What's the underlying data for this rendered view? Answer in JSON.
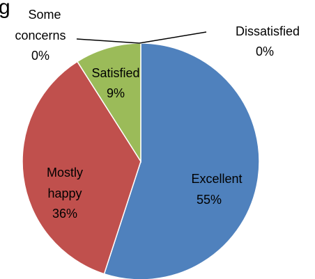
{
  "title_fragment": "g",
  "chart_data": {
    "type": "pie",
    "slices": [
      {
        "label": "Excellent",
        "value_label": "55%",
        "value": 55,
        "color": "#4F81BD"
      },
      {
        "label": "Mostly happy",
        "label_lines": [
          "Mostly",
          "happy"
        ],
        "value_label": "36%",
        "value": 36,
        "color": "#C0504D"
      },
      {
        "label": "Satisfied",
        "value_label": "9%",
        "value": 9,
        "color": "#9BBB59"
      },
      {
        "label": "Some concerns",
        "label_lines": [
          "Some",
          "concerns"
        ],
        "value_label": "0%",
        "value": 0,
        "color": "#8064A2"
      },
      {
        "label": "Dissatisfied",
        "value_label": "0%",
        "value": 0,
        "color": "#F79646"
      }
    ]
  }
}
